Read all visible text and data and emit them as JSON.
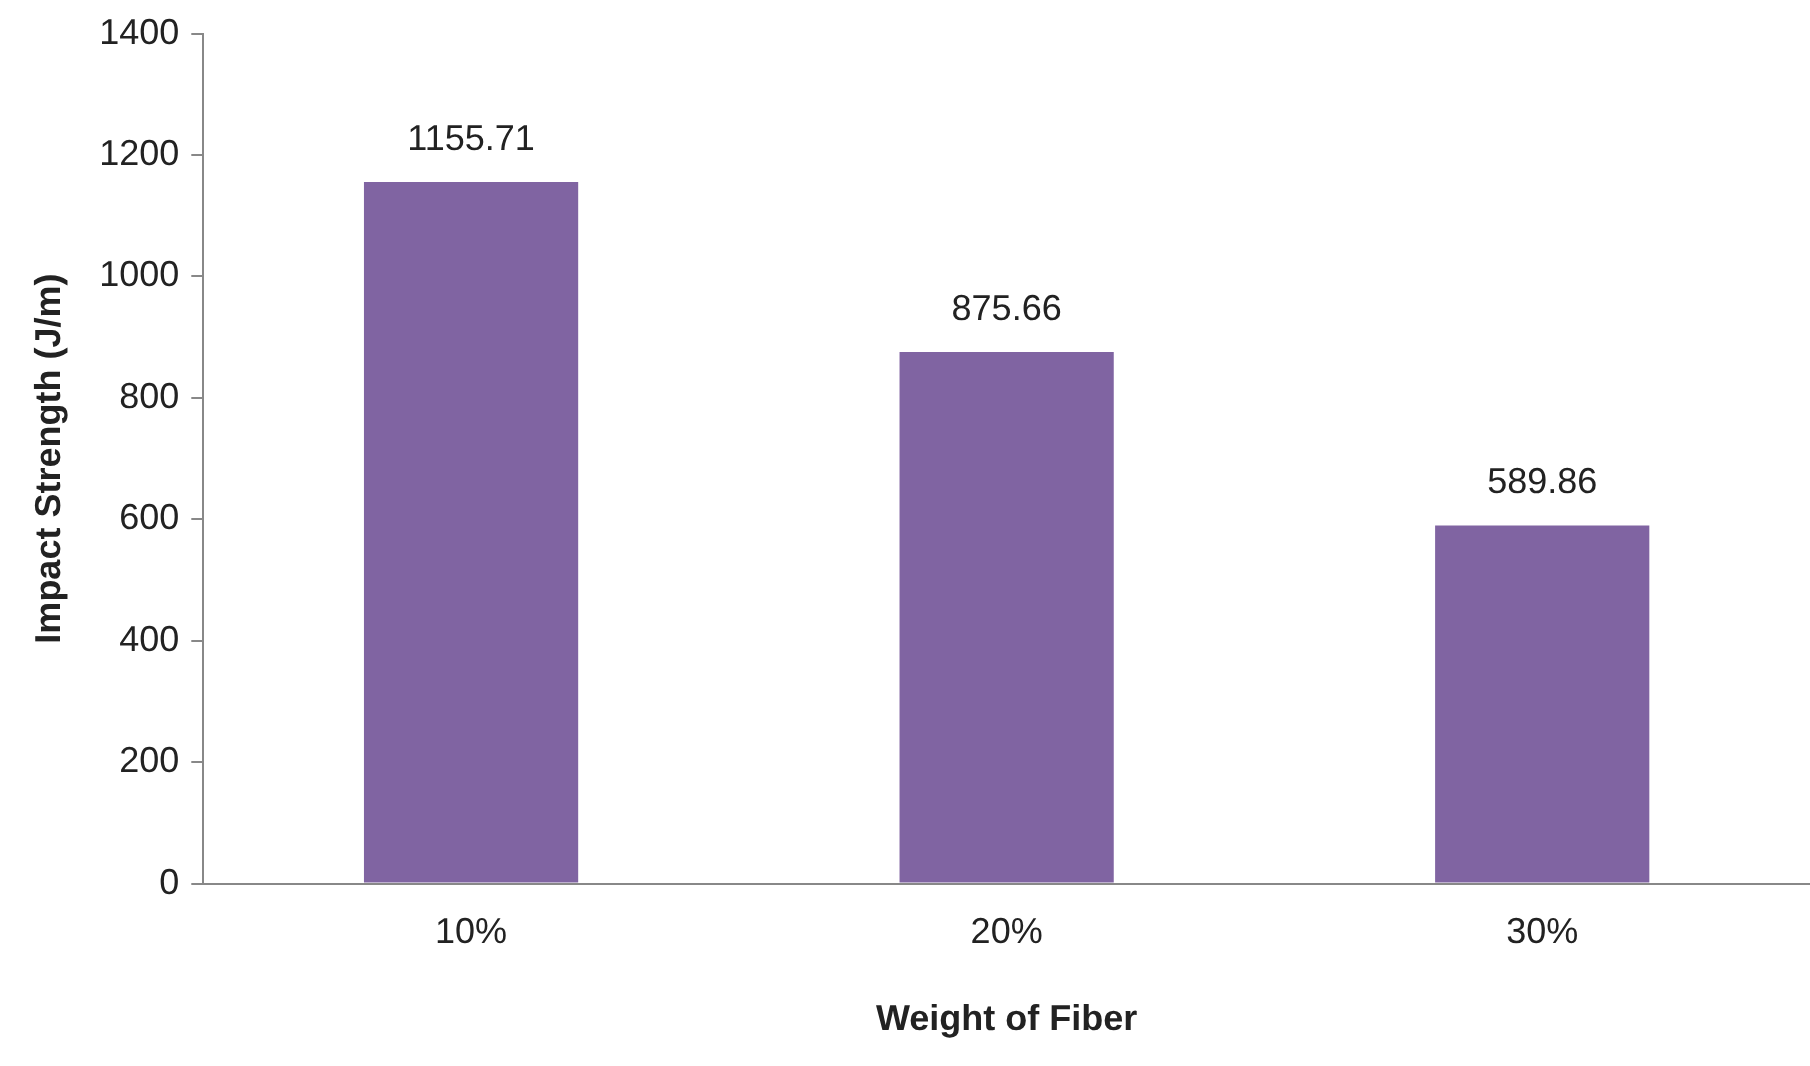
{
  "chart_data": {
    "type": "bar",
    "xlabel": "Weight of Fiber",
    "ylabel": "Impact Strength (J/m)",
    "categories": [
      "10%",
      "20%",
      "30%"
    ],
    "values": [
      1155.71,
      875.66,
      589.86
    ],
    "color": "#8064a2",
    "ylim": [
      0,
      1400
    ],
    "yticks": [
      0,
      200,
      400,
      600,
      800,
      1000,
      1200,
      1400
    ],
    "grid": false,
    "legend": false,
    "data_labels": true
  }
}
